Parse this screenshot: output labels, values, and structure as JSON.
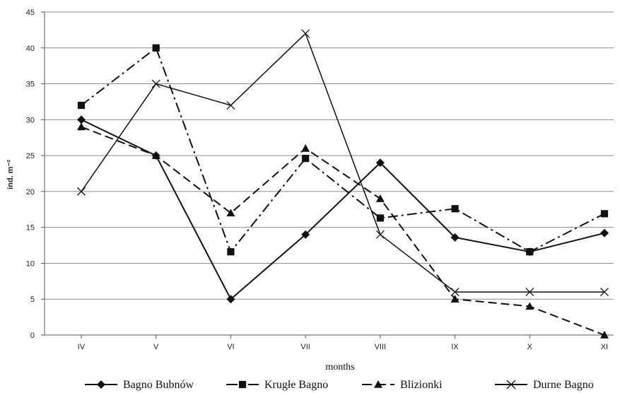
{
  "chart_data": {
    "type": "line",
    "categories": [
      "IV",
      "V",
      "VI",
      "VII",
      "VIII",
      "IX",
      "X",
      "XI"
    ],
    "ylabel": "ind. m⁻²",
    "xlabel": "months",
    "ylim": [
      0,
      45
    ],
    "yticks": [
      0,
      5,
      10,
      15,
      20,
      25,
      30,
      35,
      40,
      45
    ],
    "grid": "horizontal",
    "legend_position": "bottom",
    "series": [
      {
        "name": "Bagno Bubnów",
        "marker": "diamond",
        "dash": "solid",
        "values": [
          30,
          25,
          5,
          14,
          24,
          13.6,
          11.6,
          14.2
        ]
      },
      {
        "name": "Krugłe Bagno",
        "marker": "square",
        "dash": "dashdot",
        "values": [
          32,
          40,
          11.6,
          24.6,
          16.3,
          17.6,
          11.6,
          16.9
        ]
      },
      {
        "name": "Blizionki",
        "marker": "triangle",
        "dash": "dashed",
        "values": [
          29,
          25,
          17,
          26,
          19,
          5,
          4,
          0
        ]
      },
      {
        "name": "Durne Bagno",
        "marker": "x",
        "dash": "solid",
        "values": [
          20,
          35,
          32,
          42,
          14,
          6,
          6,
          6
        ]
      }
    ]
  }
}
